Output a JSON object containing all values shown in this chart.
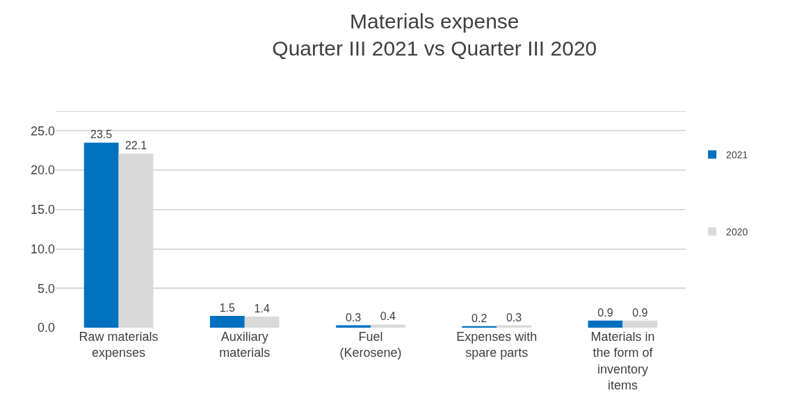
{
  "chart_data": {
    "type": "bar",
    "title": "Materials expense",
    "subtitle": "Quarter III 2021 vs Quarter III 2020",
    "categories": [
      "Raw materials expenses",
      "Auxiliary materials",
      "Fuel (Kerosene)",
      "Expenses with spare parts",
      "Materials in the form of inventory items"
    ],
    "series": [
      {
        "name": "2021",
        "color": "#0070c0",
        "values": [
          23.5,
          1.5,
          0.3,
          0.2,
          0.9
        ]
      },
      {
        "name": "2020",
        "color": "#d9d9d9",
        "values": [
          22.1,
          1.4,
          0.4,
          0.3,
          0.9
        ]
      }
    ],
    "ylim": [
      0,
      27.5
    ],
    "yticks": [
      {
        "value": 0,
        "label": "0.0"
      },
      {
        "value": 5,
        "label": "5.0"
      },
      {
        "value": 10,
        "label": "10.0"
      },
      {
        "value": 15,
        "label": "15.0"
      },
      {
        "value": 20,
        "label": "20.0"
      },
      {
        "value": 25,
        "label": "25.0"
      }
    ],
    "grid": "y",
    "legend": "right",
    "data_labels": true
  }
}
